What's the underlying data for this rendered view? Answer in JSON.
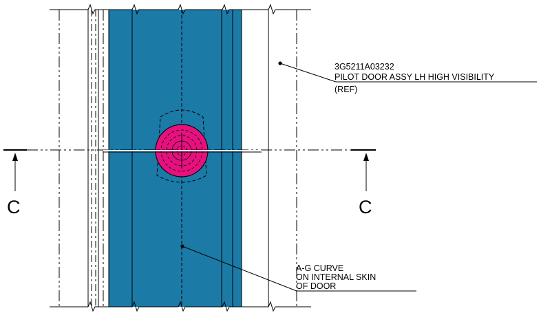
{
  "callouts": {
    "pilot_door": {
      "part_number": "3G5211A03232",
      "description": "PILOT DOOR ASSY LH HIGH VISIBILITY",
      "reference": "(REF)"
    },
    "curve": {
      "line1": "A-G CURVE",
      "line2": "ON INTERNAL SKIN",
      "line3": "OF DOOR"
    }
  },
  "section": {
    "left_letter": "C",
    "right_letter": "C"
  },
  "colors": {
    "door_panel": "#1b7aa6",
    "highlight": "#e6117e",
    "line": "#000000",
    "background": "#ffffff"
  }
}
